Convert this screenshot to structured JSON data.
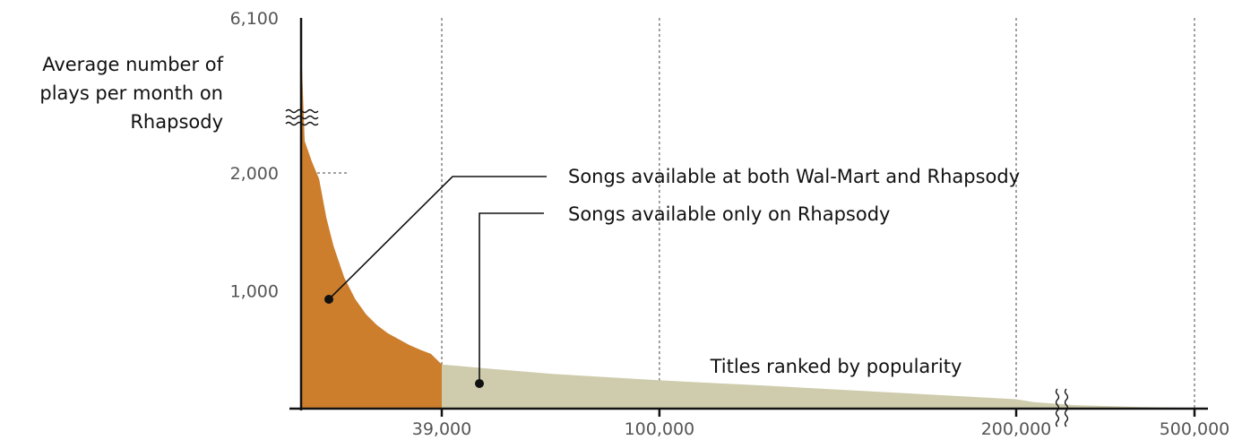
{
  "chart_data": {
    "type": "area",
    "title": "",
    "ylabel_lines": [
      "Average number of",
      "plays per month on",
      "Rhapsody"
    ],
    "xlabel": "Titles ranked by popularity",
    "y_ticks": [
      {
        "value": 1000,
        "label": "1,000"
      },
      {
        "value": 2000,
        "label": "2,000"
      },
      {
        "value": 6100,
        "label": "6,100"
      }
    ],
    "x_ticks": [
      {
        "value": 39000,
        "label": "39,000"
      },
      {
        "value": 100000,
        "label": "100,000"
      },
      {
        "value": 200000,
        "label": "200,000"
      },
      {
        "value": 500000,
        "label": "500,000"
      }
    ],
    "axis_breaks": {
      "y": "between 2,000 and 6,100",
      "x": "between 200,000 and 500,000"
    },
    "series": [
      {
        "name": "Songs available at both Wal-Mart and Rhapsody",
        "color": "#CC7E2C",
        "x": [
          0,
          1000,
          3000,
          5000,
          7000,
          9000,
          12000,
          15000,
          18000,
          21000,
          24000,
          27000,
          30000,
          33000,
          36000,
          39000
        ],
        "y": [
          6100,
          3000,
          2350,
          1950,
          1620,
          1380,
          1110,
          930,
          800,
          710,
          640,
          590,
          540,
          500,
          465,
          375
        ]
      },
      {
        "name": "Songs available only on Rhapsody",
        "color": "#CECCAC",
        "x": [
          39000,
          50000,
          70000,
          100000,
          130000,
          160000,
          200000,
          230000,
          300000,
          400000,
          500000
        ],
        "y": [
          375,
          345,
          295,
          240,
          195,
          145,
          80,
          55,
          30,
          15,
          5
        ]
      }
    ]
  }
}
